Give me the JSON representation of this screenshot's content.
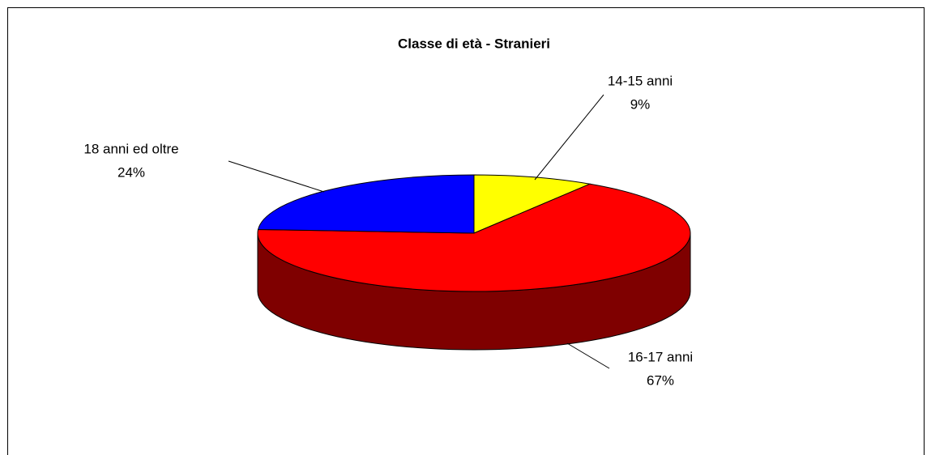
{
  "chart_data": {
    "type": "pie",
    "title": "Classe di età - Stranieri",
    "categories": [
      "14-15 anni",
      "16-17 anni",
      "18 anni ed oltre"
    ],
    "values": [
      9,
      67,
      24
    ],
    "value_labels": [
      "9%",
      "67%",
      "24%"
    ],
    "colors": [
      "#ffff00",
      "#ff0000",
      "#0000ff"
    ]
  }
}
